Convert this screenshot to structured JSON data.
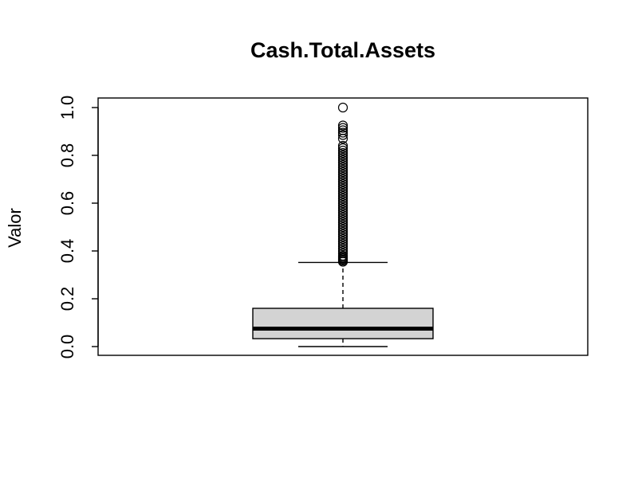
{
  "chart_data": {
    "type": "boxplot",
    "title": "Cash.Total.Assets",
    "xlabel": "",
    "ylabel": "Valor",
    "ylim": [
      -0.04,
      1.04
    ],
    "yticks": [
      0.0,
      0.2,
      0.4,
      0.6,
      0.8,
      1.0
    ],
    "ytick_labels": [
      "0.0",
      "0.2",
      "0.4",
      "0.6",
      "0.8",
      "1.0"
    ],
    "box": {
      "whisker_low": 0.0,
      "q1": 0.033,
      "median": 0.075,
      "q3": 0.16,
      "whisker_high": 0.352
    },
    "outliers": [
      1.0,
      0.925,
      0.915,
      0.905,
      0.895,
      0.885,
      0.87,
      0.84,
      0.83,
      0.82,
      0.81,
      0.8,
      0.79,
      0.78,
      0.77,
      0.76,
      0.75,
      0.74,
      0.73,
      0.72,
      0.71,
      0.7,
      0.69,
      0.68,
      0.67,
      0.66,
      0.65,
      0.64,
      0.63,
      0.62,
      0.61,
      0.6,
      0.59,
      0.58,
      0.57,
      0.56,
      0.55,
      0.54,
      0.53,
      0.52,
      0.51,
      0.5,
      0.49,
      0.48,
      0.47,
      0.46,
      0.45,
      0.44,
      0.43,
      0.42,
      0.41,
      0.4,
      0.39,
      0.38,
      0.375,
      0.37,
      0.365,
      0.36,
      0.355
    ],
    "grid": false,
    "colors": {
      "box_fill": "#d3d3d3",
      "stroke": "#000000"
    }
  }
}
